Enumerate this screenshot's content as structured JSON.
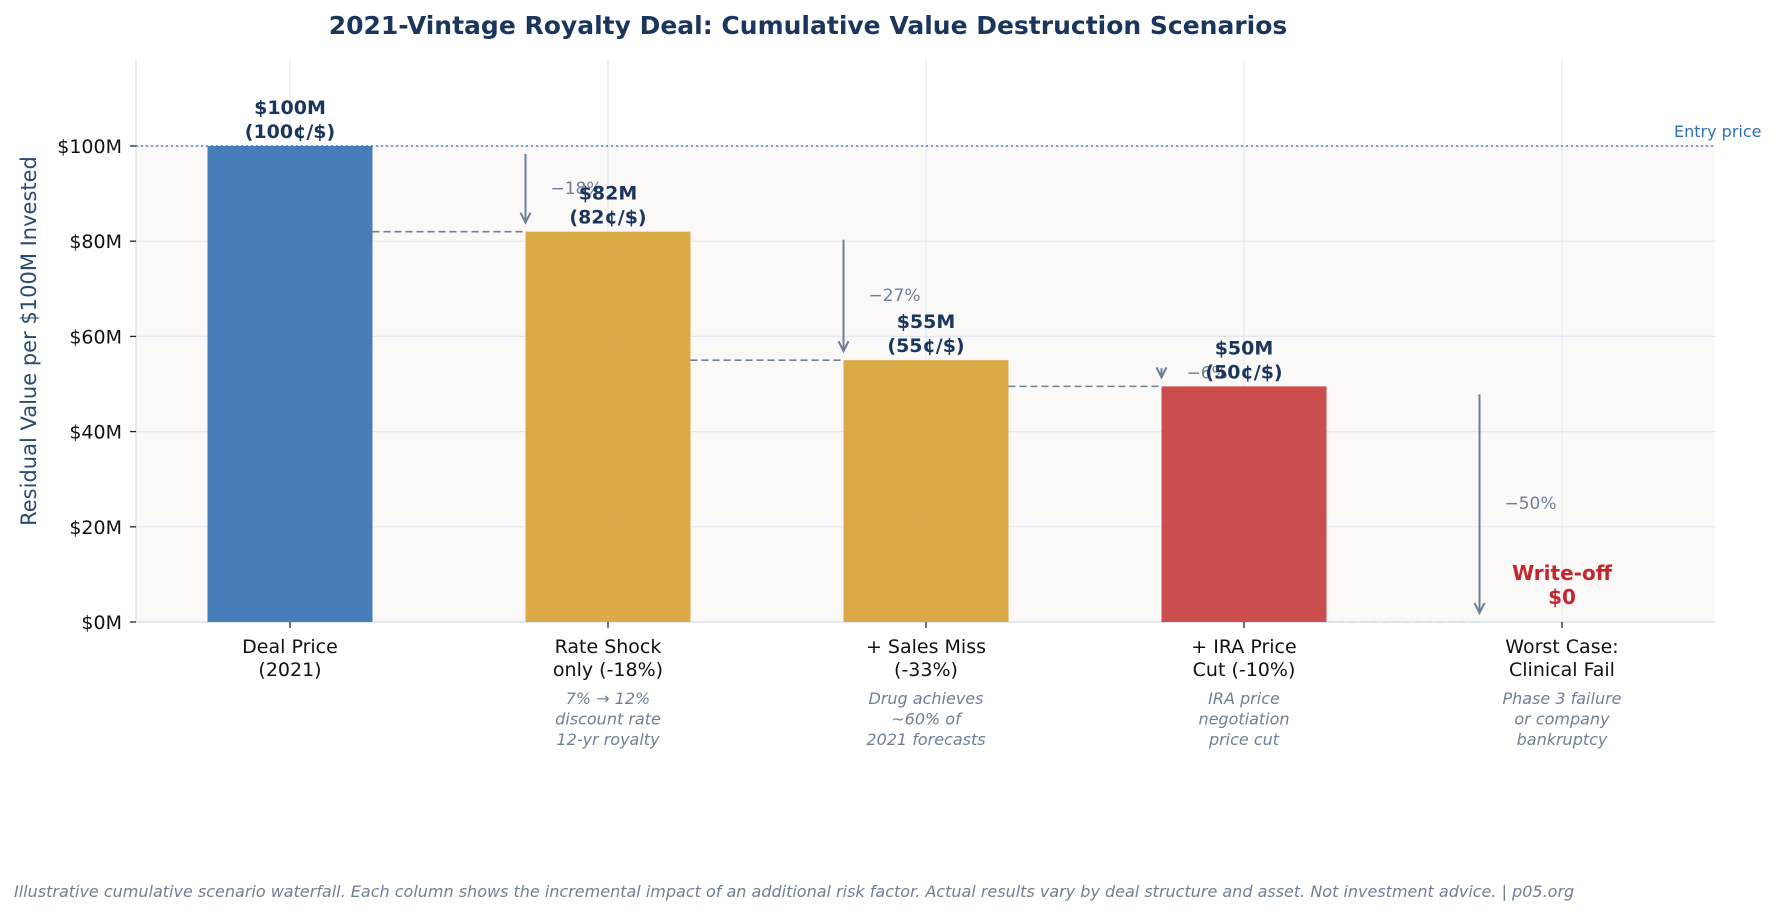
{
  "chart_data": {
    "type": "bar",
    "subtype": "waterfall",
    "title": "2021-Vintage Royalty Deal: Cumulative Value Destruction Scenarios",
    "xlabel": "",
    "ylabel": "Residual Value per $100M Invested",
    "ylim": [
      0,
      118
    ],
    "yticks": [
      0,
      20,
      40,
      60,
      80,
      100
    ],
    "ytick_labels": [
      "$0M",
      "$20M",
      "$40M",
      "$60M",
      "$80M",
      "$100M"
    ],
    "grid": true,
    "reference_line": {
      "value": 100,
      "label": "Entry price",
      "color": "#4a7ebb"
    },
    "categories": [
      {
        "label": [
          "Deal Price",
          "(2021)"
        ],
        "sub": []
      },
      {
        "label": [
          "Rate Shock",
          "only (-18%)"
        ],
        "sub": [
          "7% → 12%",
          "discount rate",
          "12-yr royalty"
        ]
      },
      {
        "label": [
          "+ Sales Miss",
          "(-33%)"
        ],
        "sub": [
          "Drug achieves",
          "~60% of",
          "2021 forecasts"
        ]
      },
      {
        "label": [
          "+ IRA Price",
          "Cut (-10%)"
        ],
        "sub": [
          "IRA price",
          "negotiation",
          "price cut"
        ]
      },
      {
        "label": [
          "Worst Case:",
          "Clinical Fail"
        ],
        "sub": [
          "Phase 3 failure",
          "or company",
          "bankruptcy"
        ]
      }
    ],
    "values": [
      100,
      82,
      55,
      49.5,
      0
    ],
    "bar_colors": [
      "#3d76b5",
      "#d9a43c",
      "#d9a43c",
      "#c94343",
      null
    ],
    "value_labels": [
      [
        "$100M",
        "(100¢/$)"
      ],
      [
        "$82M",
        "(82¢/$)"
      ],
      [
        "$55M",
        "(55¢/$)"
      ],
      [
        "$50M",
        "(50¢/$)"
      ],
      [
        "Write-off",
        "$0"
      ]
    ],
    "step_changes": [
      null,
      {
        "from": 100,
        "to": 82,
        "label": "−18%"
      },
      {
        "from": 82,
        "to": 55,
        "label": "−27%"
      },
      {
        "from": 55,
        "to": 49.5,
        "label": "−6%"
      },
      {
        "from": 49.5,
        "to": 0,
        "label": "−50%"
      }
    ]
  },
  "footer": "Illustrative cumulative scenario waterfall. Each column shows the incremental impact of an additional risk factor. Actual results vary by deal structure and asset. Not investment advice. | p05.org",
  "colors": {
    "title": "#1b365d",
    "plot_bg": "#faf9f8",
    "grid": "#e3e8f0",
    "connector": "#6f7f96",
    "writeoff": "#c0282e"
  }
}
